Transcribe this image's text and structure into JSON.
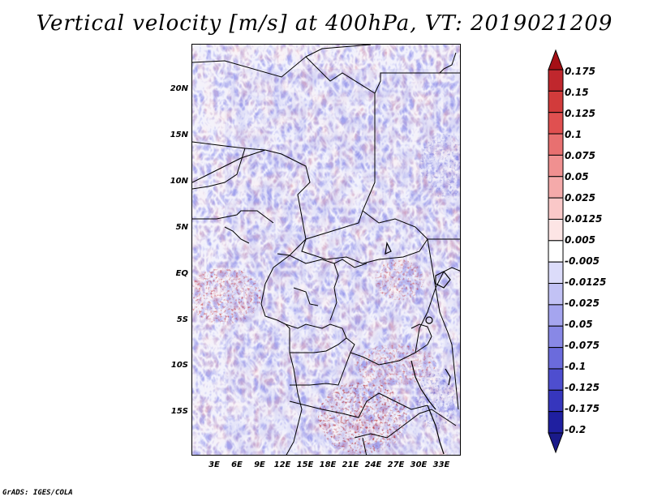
{
  "title": "Vertical velocity [m/s] at 400hPa, VT: 2019021209",
  "footer": "GrADS: IGES/COLA",
  "map": {
    "region": "Central Africa",
    "lat_range": [
      -19,
      25
    ],
    "lon_range": [
      0,
      36
    ],
    "lat_labels": [
      {
        "lat": 20,
        "label": "20N"
      },
      {
        "lat": 15,
        "label": "15N"
      },
      {
        "lat": 10,
        "label": "10N"
      },
      {
        "lat": 5,
        "label": "5N"
      },
      {
        "lat": 0,
        "label": "EQ"
      },
      {
        "lat": -5,
        "label": "5S"
      },
      {
        "lat": -10,
        "label": "10S"
      },
      {
        "lat": -15,
        "label": "15S"
      }
    ],
    "lon_labels": [
      {
        "lon": 3,
        "label": "3E"
      },
      {
        "lon": 6,
        "label": "6E"
      },
      {
        "lon": 9,
        "label": "9E"
      },
      {
        "lon": 12,
        "label": "12E"
      },
      {
        "lon": 15,
        "label": "15E"
      },
      {
        "lon": 18,
        "label": "18E"
      },
      {
        "lon": 21,
        "label": "21E"
      },
      {
        "lon": 24,
        "label": "24E"
      },
      {
        "lon": 27,
        "label": "27E"
      },
      {
        "lon": 30,
        "label": "30E"
      },
      {
        "lon": 33,
        "label": "33E"
      }
    ]
  },
  "colorbar": {
    "levels": [
      "0.175",
      "0.15",
      "0.125",
      "0.1",
      "0.075",
      "0.05",
      "0.025",
      "0.0125",
      "0.005",
      "-0.005",
      "-0.0125",
      "-0.025",
      "-0.05",
      "-0.075",
      "-0.1",
      "-0.125",
      "-0.175",
      "-0.2"
    ],
    "colors": [
      "#a50f15",
      "#c0272d",
      "#d23b3b",
      "#e05050",
      "#e87070",
      "#f09090",
      "#f5aaaa",
      "#fac8c8",
      "#fde5e5",
      "#ffffff",
      "#dcdcfa",
      "#c2c2f5",
      "#a5a5ef",
      "#8888e6",
      "#6b6bdc",
      "#4e4ecf",
      "#3636bd",
      "#1f1fa0",
      "#1a1a8a"
    ]
  }
}
